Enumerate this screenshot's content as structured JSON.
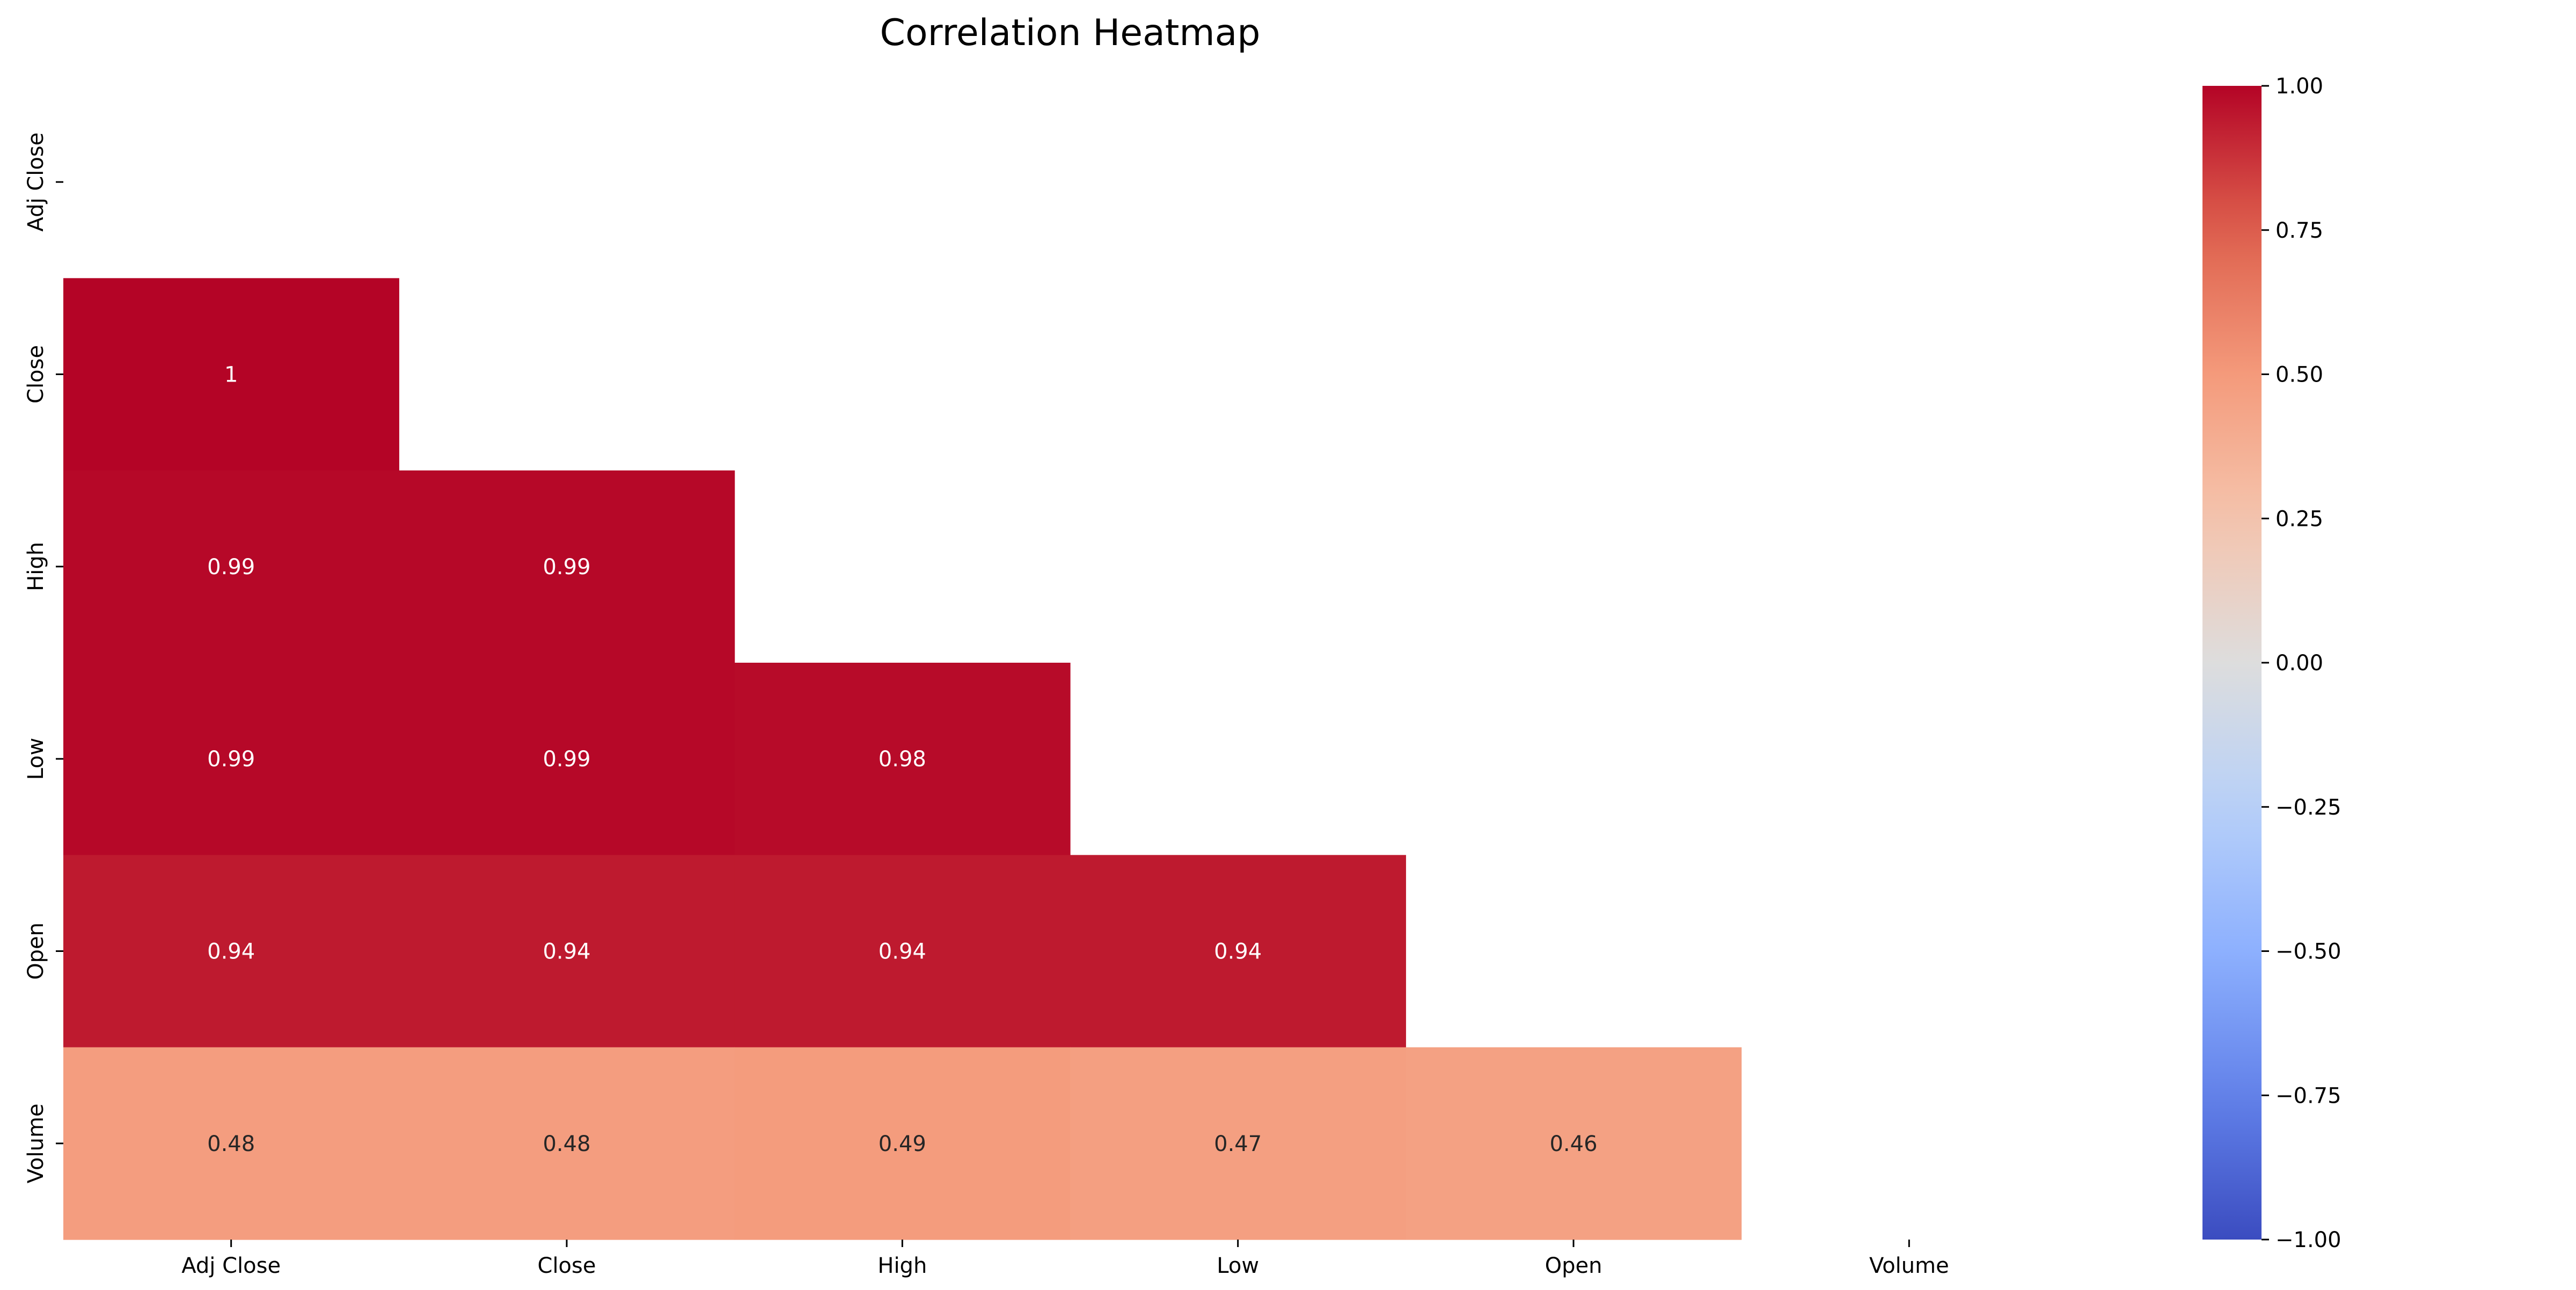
{
  "chart_data": {
    "type": "heatmap",
    "title": "Correlation Heatmap",
    "xlabel": "",
    "ylabel": "",
    "x_labels": [
      "Adj Close",
      "Close",
      "High",
      "Low",
      "Open",
      "Volume"
    ],
    "y_labels": [
      "Adj Close",
      "Close",
      "High",
      "Low",
      "Open",
      "Volume"
    ],
    "mask": "upper-triangle-including-diagonal",
    "values": [
      [
        null,
        null,
        null,
        null,
        null,
        null
      ],
      [
        1,
        null,
        null,
        null,
        null,
        null
      ],
      [
        0.99,
        0.99,
        null,
        null,
        null,
        null
      ],
      [
        0.99,
        0.99,
        0.98,
        null,
        null,
        null
      ],
      [
        0.94,
        0.94,
        0.94,
        0.94,
        null,
        null
      ],
      [
        0.48,
        0.48,
        0.49,
        0.47,
        0.46,
        null
      ]
    ],
    "annotations": [
      [
        "",
        "",
        "",
        "",
        "",
        ""
      ],
      [
        "1",
        "",
        "",
        "",
        "",
        ""
      ],
      [
        "0.99",
        "0.99",
        "",
        "",
        "",
        ""
      ],
      [
        "0.99",
        "0.99",
        "0.98",
        "",
        "",
        ""
      ],
      [
        "0.94",
        "0.94",
        "0.94",
        "0.94",
        "",
        ""
      ],
      [
        "0.48",
        "0.48",
        "0.49",
        "0.47",
        "0.46",
        ""
      ]
    ],
    "colormap": "coolwarm",
    "vmin": -1.0,
    "vmax": 1.0,
    "colorbar": {
      "ticks": [
        1.0,
        0.75,
        0.5,
        0.25,
        0.0,
        -0.25,
        -0.5,
        -0.75,
        -1.0
      ],
      "tick_labels": [
        "1.00",
        "0.75",
        "0.50",
        "0.25",
        "0.00",
        "−0.25",
        "−0.50",
        "−0.75",
        "−1.00"
      ]
    },
    "grid": false,
    "legend": "colorbar-right"
  }
}
